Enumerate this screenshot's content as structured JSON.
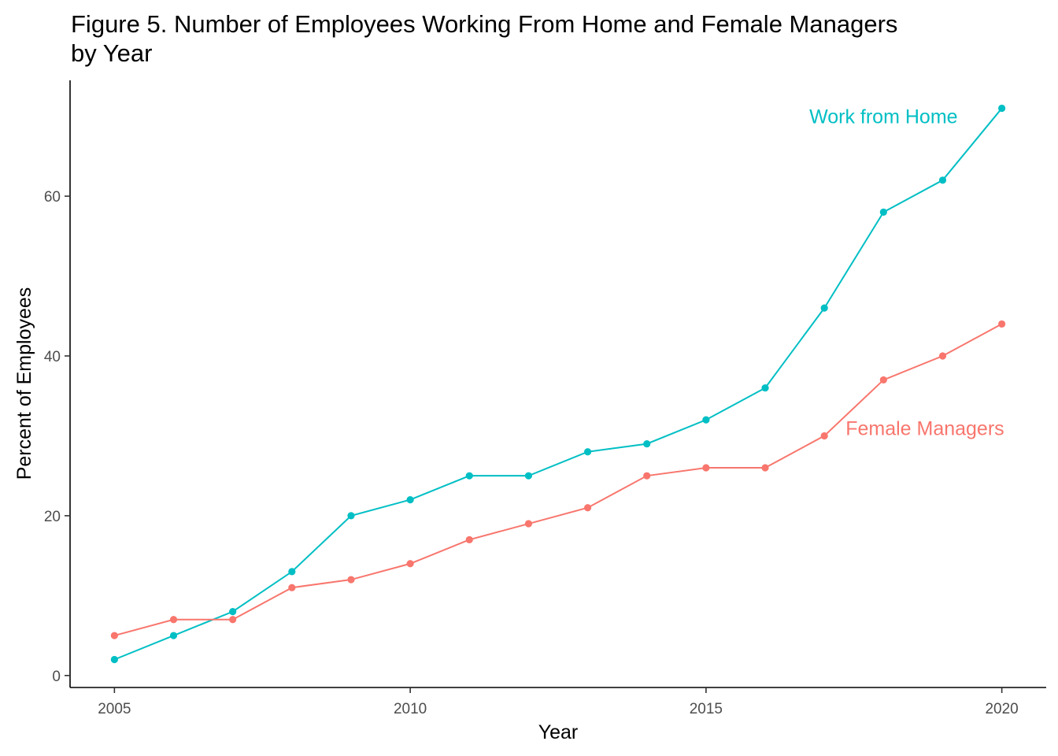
{
  "chart_data": {
    "type": "line",
    "title": "Figure 5. Number of Employees Working From Home and Female Managers by Year",
    "title_lines": [
      "Figure 5. Number of Employees Working From Home and Female Managers",
      "by Year"
    ],
    "xlabel": "Year",
    "ylabel": "Percent of Employees",
    "xlim": [
      2004.25,
      2020.75
    ],
    "ylim": [
      -1.5,
      74.5
    ],
    "xticks": [
      2005,
      2010,
      2015,
      2020
    ],
    "yticks": [
      0,
      20,
      40,
      60
    ],
    "grid": false,
    "legend": "none (direct labels)",
    "x": [
      2005,
      2006,
      2007,
      2008,
      2009,
      2010,
      2011,
      2012,
      2013,
      2014,
      2015,
      2016,
      2017,
      2018,
      2019,
      2020
    ],
    "series": [
      {
        "name": "Work from Home",
        "color": "#00BFC4",
        "values": [
          2,
          5,
          8,
          13,
          20,
          22,
          25,
          25,
          28,
          29,
          32,
          36,
          46,
          58,
          62,
          71
        ],
        "label_anchor": {
          "x": 2018.0,
          "y": 70
        }
      },
      {
        "name": "Female Managers",
        "color": "#F8766D",
        "values": [
          5,
          7,
          7,
          11,
          12,
          14,
          17,
          19,
          21,
          25,
          26,
          26,
          30,
          37,
          40,
          44
        ],
        "label_anchor": {
          "x": 2018.7,
          "y": 31
        }
      }
    ]
  }
}
